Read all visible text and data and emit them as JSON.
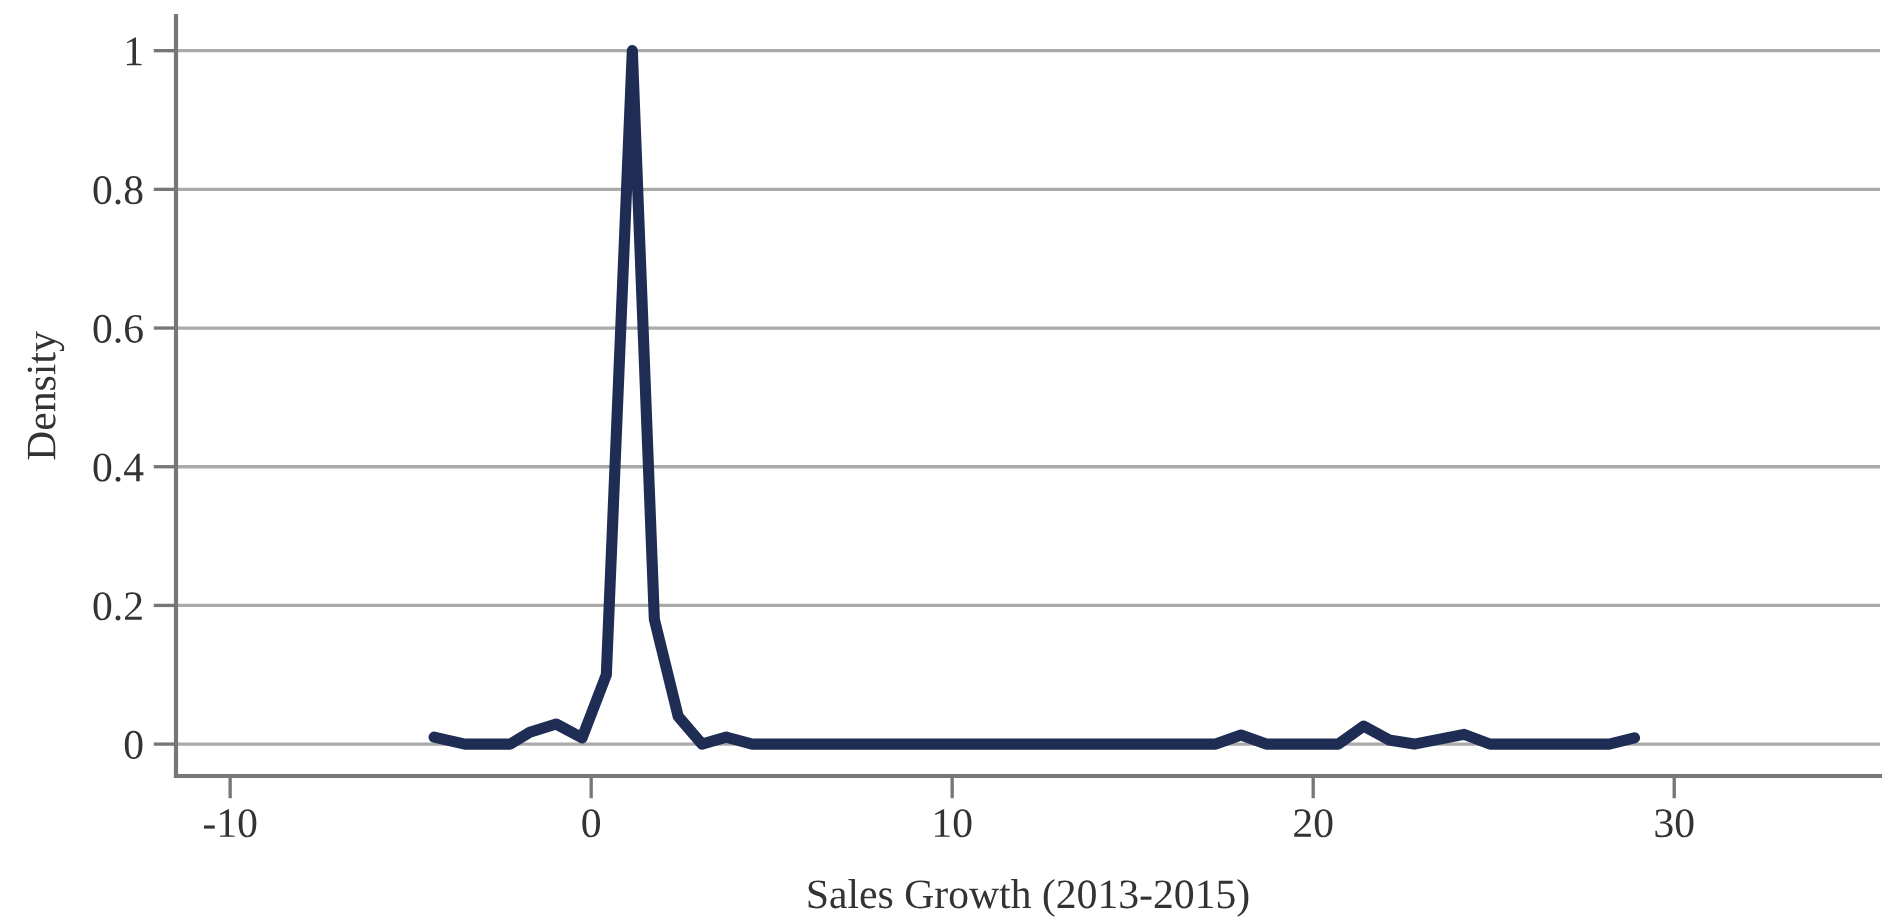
{
  "chart_data": {
    "type": "line",
    "xlabel": "Sales Growth (2013-2015)",
    "ylabel": "Density",
    "x": [
      -4.35,
      -3.5,
      -2.24,
      -1.7,
      -0.97,
      -0.25,
      0.42,
      1.14,
      1.75,
      2.41,
      3.07,
      3.74,
      4.46,
      17.3,
      18.0,
      18.7,
      20.7,
      21.4,
      22.1,
      22.8,
      24.18,
      24.9,
      28.2,
      28.9
    ],
    "series": [
      {
        "color": "#1f2d55",
        "values": [
          0.01,
          0,
          0,
          0.017,
          0.029,
          0.009,
          0.1,
          1.0,
          0.18,
          0.04,
          0,
          0.01,
          0,
          0,
          0.013,
          0,
          0,
          0.026,
          0.006,
          0,
          0.014,
          0,
          0,
          0.009
        ]
      }
    ],
    "xlim": [
      -11.5,
      35.7
    ],
    "xticks": [
      -10,
      0,
      10,
      20,
      30
    ],
    "ylim": [
      -0.046,
      1.05
    ],
    "yticks": [
      0,
      {
        "value": 0.2,
        "label": "0.2"
      },
      {
        "value": 0.4,
        "label": "0.4"
      },
      {
        "value": 0.6,
        "label": "0.6"
      },
      {
        "value": 0.8,
        "label": "0.8"
      },
      1
    ],
    "grid": "y",
    "marker": "none",
    "line_style": "solid"
  }
}
